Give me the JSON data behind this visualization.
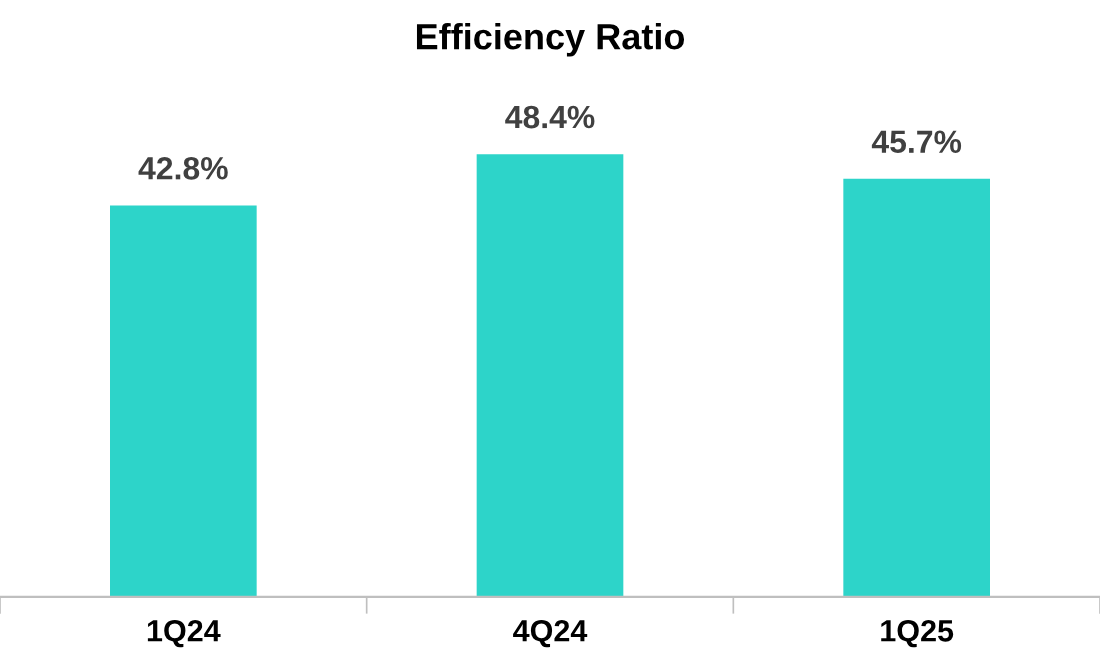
{
  "chart_data": {
    "type": "bar",
    "title": "Efficiency Ratio",
    "categories": [
      "1Q24",
      "4Q24",
      "1Q25"
    ],
    "values": [
      42.8,
      48.4,
      45.7
    ],
    "value_labels": [
      "42.8%",
      "48.4%",
      "45.7%"
    ],
    "color": "#2dd4c9",
    "grid": false,
    "legend": false
  }
}
